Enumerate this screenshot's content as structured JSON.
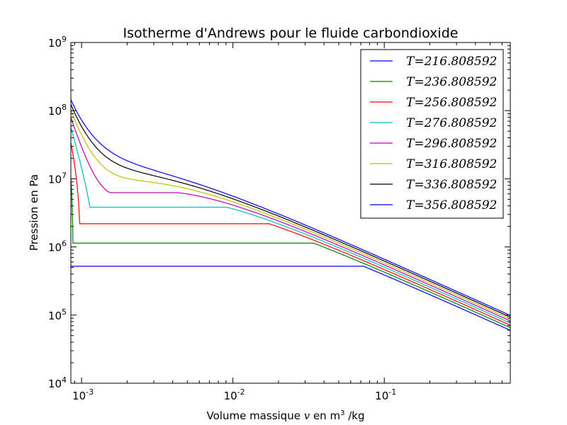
{
  "chart_data": {
    "type": "line",
    "title": "Isotherme d'Andrews pour le fluide carbondioxide",
    "xlabel": {
      "prefix": "Volume massique ",
      "var": "v",
      "mid": " en m",
      "sup": "3",
      "suffix": " /kg"
    },
    "ylabel": "Pression en Pa",
    "xscale": "log",
    "yscale": "log",
    "xlim": [
      0.00085,
      0.68
    ],
    "ylim": [
      10000,
      1000000000
    ],
    "xticks": [
      {
        "value": 0.001,
        "base": "10",
        "exp": "-3"
      },
      {
        "value": 0.01,
        "base": "10",
        "exp": "-2"
      },
      {
        "value": 0.1,
        "base": "10",
        "exp": "-1"
      }
    ],
    "yticks": [
      {
        "value": 10000,
        "base": "10",
        "exp": "4"
      },
      {
        "value": 100000,
        "base": "10",
        "exp": "5"
      },
      {
        "value": 1000000,
        "base": "10",
        "exp": "6"
      },
      {
        "value": 10000000,
        "base": "10",
        "exp": "7"
      },
      {
        "value": 100000000,
        "base": "10",
        "exp": "8"
      },
      {
        "value": 1000000000,
        "base": "10",
        "exp": "9"
      }
    ],
    "grid": false,
    "legend_position": "top-right",
    "series": [
      {
        "name": "T=216.808592",
        "T": 216.808592,
        "color": "#0000ff"
      },
      {
        "name": "T=236.808592",
        "T": 236.808592,
        "color": "#008000"
      },
      {
        "name": "T=256.808592",
        "T": 256.808592,
        "color": "#ff0000"
      },
      {
        "name": "T=276.808592",
        "T": 276.808592,
        "color": "#00bfbf"
      },
      {
        "name": "T=296.808592",
        "T": 296.808592,
        "color": "#bf00bf"
      },
      {
        "name": "T=316.808592",
        "T": 316.808592,
        "color": "#bfbf00"
      },
      {
        "name": "T=336.808592",
        "T": 336.808592,
        "color": "#000000"
      },
      {
        "name": "T=356.808592",
        "T": 356.808592,
        "color": "#0000ff"
      }
    ]
  }
}
